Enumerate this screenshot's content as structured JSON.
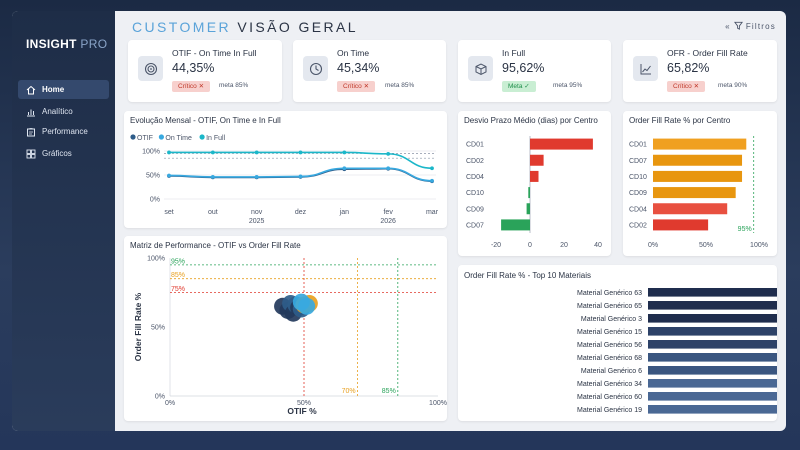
{
  "app": {
    "brand": "INSIGHT",
    "brand_suffix": "PRO"
  },
  "header": {
    "title_part1": "CUSTOMER",
    "title_part2": "VISÃO GERAL",
    "filters_label": "Filtros",
    "collapse_icon": "double-chevron-left-icon",
    "filter_icon": "funnel-icon"
  },
  "nav": [
    {
      "label": "Home",
      "icon": "home-icon",
      "active": true
    },
    {
      "label": "Analítico",
      "icon": "chart-icon",
      "active": false
    },
    {
      "label": "Performance",
      "icon": "clipboard-icon",
      "active": false
    },
    {
      "label": "Gráficos",
      "icon": "grid-icon",
      "active": false
    }
  ],
  "kpis": [
    {
      "title": "OTIF - On Time In Full",
      "value": "44,35%",
      "status": "Crítico ✕",
      "status_type": "critical",
      "meta": "meta 85%",
      "icon": "target-icon"
    },
    {
      "title": "On Time",
      "value": "45,34%",
      "status": "Crítico ✕",
      "status_type": "critical",
      "meta": "meta 85%",
      "icon": "clock-icon"
    },
    {
      "title": "In Full",
      "value": "95,62%",
      "status": "Meta ✓",
      "status_type": "ok",
      "meta": "meta 95%",
      "icon": "box-icon"
    },
    {
      "title": "OFR - Order Fill Rate",
      "value": "65,82%",
      "status": "Crítico ✕",
      "status_type": "critical",
      "meta": "meta 90%",
      "icon": "trend-icon"
    }
  ],
  "panels": {
    "monthly": "Evolução Mensal - OTIF, On Time e In Full",
    "delay": "Desvio Prazo Médio (dias) por Centro",
    "ofr_center": "Order Fill Rate % por Centro",
    "matrix": "Matriz de Performance - OTIF vs Order Fill Rate",
    "top10": "Order Fill Rate % - Top 10 Materiais"
  },
  "chart_data": [
    {
      "id": "monthly",
      "type": "line",
      "title": "Evolução Mensal - OTIF, On Time e In Full",
      "categories": [
        "set",
        "out",
        "nov",
        "dez",
        "jan",
        "fev",
        "mar"
      ],
      "year_labels": [
        {
          "label": "2025",
          "at": "nov"
        },
        {
          "label": "2026",
          "at": "fev"
        }
      ],
      "series": [
        {
          "name": "OTIF",
          "color": "#2f5d8a",
          "values": [
            48,
            45,
            45,
            46,
            62,
            63,
            37
          ]
        },
        {
          "name": "On Time",
          "color": "#38a9e0",
          "values": [
            49,
            46,
            46,
            47,
            64,
            64,
            38
          ]
        },
        {
          "name": "In Full",
          "color": "#1bb7c9",
          "values": [
            97,
            97,
            97,
            97,
            97,
            94,
            64
          ]
        }
      ],
      "yticks": [
        "100%",
        "50%",
        "0%"
      ],
      "ylim": [
        0,
        100
      ],
      "ref_lines": [
        85,
        95
      ],
      "legend": "top-left"
    },
    {
      "id": "delay",
      "type": "bar",
      "title": "Desvio Prazo Médio (dias) por Centro",
      "categories": [
        "CD01",
        "CD02",
        "CD04",
        "CD10",
        "CD09",
        "CD07"
      ],
      "values": [
        37,
        8,
        5,
        -1,
        -2,
        -17
      ],
      "xticks": [
        -20,
        0,
        20,
        40
      ],
      "xlim": [
        -20,
        40
      ]
    },
    {
      "id": "ofr_center",
      "type": "bar",
      "title": "Order Fill Rate % por Centro",
      "categories": [
        "CD01",
        "CD07",
        "CD10",
        "CD09",
        "CD04",
        "CD02"
      ],
      "values": [
        88,
        84,
        84,
        78,
        70,
        52
      ],
      "colors": [
        "#f0a020",
        "#e8960f",
        "#e8960f",
        "#e8960f",
        "#e85040",
        "#e03a2e"
      ],
      "xticks": [
        "0%",
        "50%",
        "100%"
      ],
      "xlim": [
        0,
        100
      ],
      "ref_line": {
        "value": 95,
        "label": "95%"
      }
    },
    {
      "id": "matrix",
      "type": "scatter",
      "title": "Matriz de Performance - OTIF vs Order Fill Rate",
      "xlabel": "OTIF %",
      "ylabel": "Order Fill Rate %",
      "xticks": [
        "0%",
        "50%",
        "100%"
      ],
      "yticks": [
        "100%",
        "50%",
        "0%"
      ],
      "xlim": [
        0,
        100
      ],
      "ylim": [
        0,
        100
      ],
      "ref_lines_y": [
        {
          "value": 95,
          "label": "95%",
          "color": "#2aa35a"
        },
        {
          "value": 85,
          "label": "85%",
          "color": "#e8a020"
        },
        {
          "value": 75,
          "label": "75%",
          "color": "#e03a2e"
        }
      ],
      "ref_lines_x": [
        {
          "value": 50,
          "label": "",
          "color": "#e03a2e"
        },
        {
          "value": 70,
          "label": "70%",
          "color": "#e8a020"
        },
        {
          "value": 85,
          "label": "85%",
          "color": "#2aa35a"
        }
      ],
      "points": [
        {
          "x": 42,
          "y": 65,
          "color": "#233a5c"
        },
        {
          "x": 44,
          "y": 62,
          "color": "#233a5c"
        },
        {
          "x": 45,
          "y": 67,
          "color": "#2f5d8a"
        },
        {
          "x": 46,
          "y": 60,
          "color": "#233a5c"
        },
        {
          "x": 47,
          "y": 66,
          "color": "#2f5d8a"
        },
        {
          "x": 48,
          "y": 64,
          "color": "#233a5c"
        },
        {
          "x": 49,
          "y": 63,
          "color": "#2f5d8a"
        },
        {
          "x": 50,
          "y": 66,
          "color": "#e8a020"
        },
        {
          "x": 52,
          "y": 67,
          "color": "#e8a020"
        },
        {
          "x": 49,
          "y": 68,
          "color": "#38a9e0"
        },
        {
          "x": 51,
          "y": 65,
          "color": "#38a9e0"
        }
      ]
    },
    {
      "id": "top10",
      "type": "bar",
      "title": "Order Fill Rate % - Top 10 Materiais",
      "categories": [
        "Material Genérico 63",
        "Material Genérico 65",
        "Material Genérico 3",
        "Material Genérico 15",
        "Material Genérico 56",
        "Material Genérico 68",
        "Material Genérico 6",
        "Material Genérico 34",
        "Material Genérico 60",
        "Material Genérico 19"
      ],
      "values": [
        67,
        67,
        67,
        67,
        66,
        66,
        64,
        64,
        64,
        61
      ],
      "labels": [
        "67%",
        "67%",
        "67%",
        "67%",
        "66%",
        "66%",
        "64%",
        "64%",
        "64%",
        "61%"
      ],
      "colors": [
        "#1f2d4d",
        "#1f2d4d",
        "#1f2d4d",
        "#2d4268",
        "#2d4268",
        "#3a5680",
        "#3a5680",
        "#4a6894",
        "#4a6894",
        "#4a6894"
      ],
      "xlim": [
        0,
        100
      ]
    }
  ]
}
